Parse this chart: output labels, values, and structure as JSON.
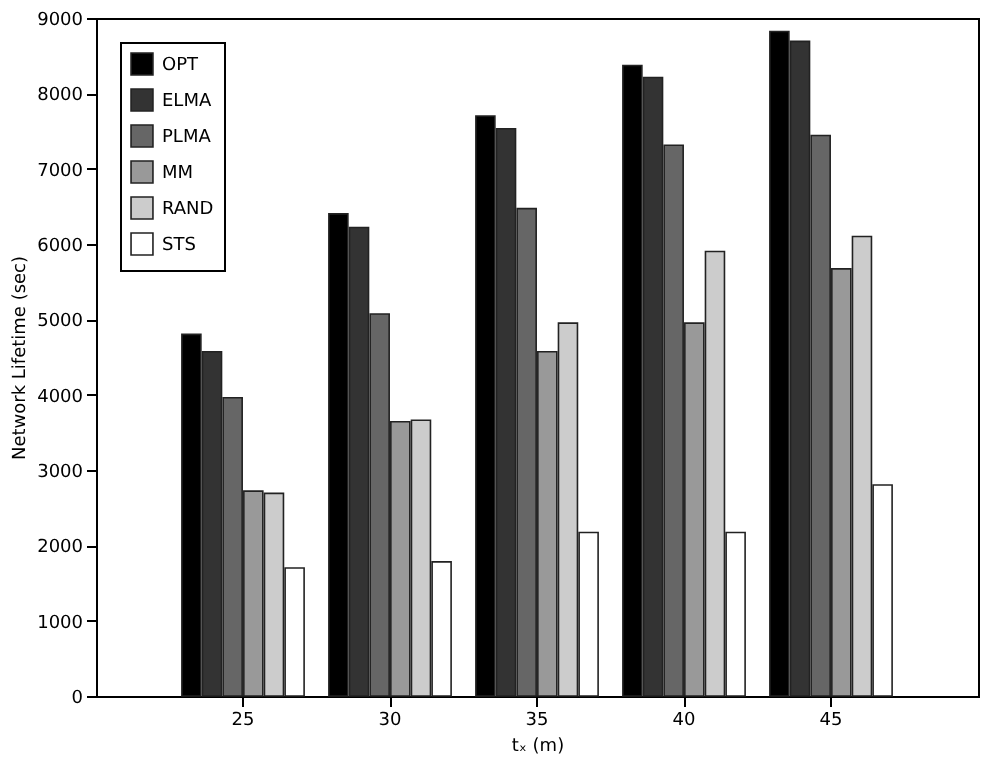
{
  "chart_data": {
    "type": "bar",
    "xlabel": "tₓ (m)",
    "ylabel": "Network Lifetime (sec)",
    "categories": [
      "25",
      "30",
      "35",
      "40",
      "45"
    ],
    "series": [
      {
        "name": "OPT",
        "color": "#000000",
        "values": [
          4800,
          6400,
          7700,
          8370,
          8820
        ]
      },
      {
        "name": "ELMA",
        "color": "#333333",
        "values": [
          4570,
          6220,
          7530,
          8210,
          8690
        ]
      },
      {
        "name": "PLMA",
        "color": "#666666",
        "values": [
          3960,
          5070,
          6470,
          7310,
          7440
        ]
      },
      {
        "name": "MM",
        "color": "#999999",
        "values": [
          2720,
          3640,
          4570,
          4950,
          5670
        ]
      },
      {
        "name": "RAND",
        "color": "#cccccc",
        "values": [
          2690,
          3660,
          4950,
          5900,
          6100
        ]
      },
      {
        "name": "STS",
        "color": "#ffffff",
        "values": [
          1700,
          1780,
          2170,
          2170,
          2800
        ]
      }
    ],
    "ylim": [
      0,
      9000
    ],
    "yticks": [
      0,
      1000,
      2000,
      3000,
      4000,
      5000,
      6000,
      7000,
      8000,
      9000
    ],
    "grid": false,
    "legend": "top left"
  }
}
